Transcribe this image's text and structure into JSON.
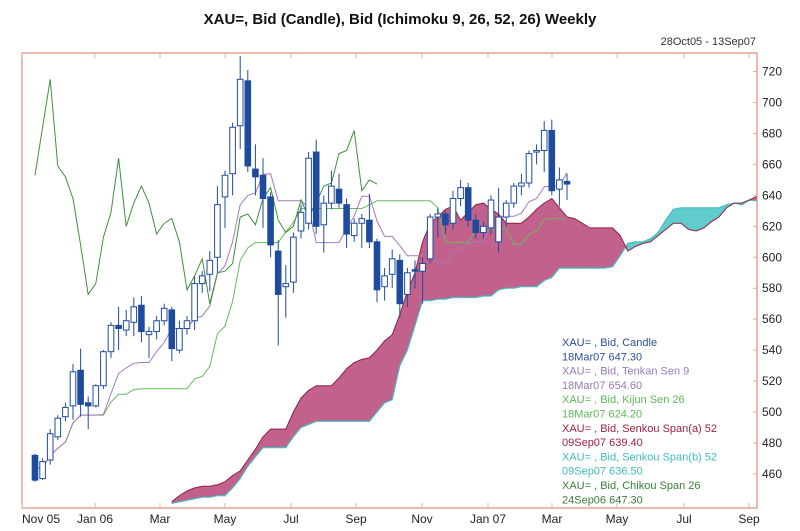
{
  "chart_data": {
    "type": "candlestick",
    "title": "XAU=, Bid (Candle), Bid (Ichimoku 9, 26, 52, 26) Weekly",
    "subtitle": "28Oct05 - 13Sep07",
    "ylim": [
      438,
      732
    ],
    "y_ticks": [
      460,
      480,
      500,
      520,
      540,
      560,
      580,
      600,
      620,
      640,
      660,
      680,
      700,
      720
    ],
    "x_tick_labels": [
      "Nov 05",
      "Jan 06",
      "Mar",
      "May",
      "Jul",
      "Sep",
      "Nov",
      "Jan 07",
      "Mar",
      "May",
      "Jul",
      "Sep"
    ],
    "grid": false,
    "legend_placement": "bottom-right",
    "dates": [
      "13Nov05",
      "20Nov05",
      "27Nov05",
      "04Dec05",
      "11Dec05",
      "18Dec05",
      "25Dec05",
      "01Jan06",
      "08Jan06",
      "15Jan06",
      "22Jan06",
      "29Jan06",
      "05Feb06",
      "12Feb06",
      "19Feb06",
      "26Feb06",
      "05Mar06",
      "12Mar06",
      "19Mar06",
      "26Mar06",
      "02Apr06",
      "09Apr06",
      "16Apr06",
      "23Apr06",
      "30Apr06",
      "07May06",
      "14May06",
      "21May06",
      "28May06",
      "04Jun06",
      "11Jun06",
      "18Jun06",
      "25Jun06",
      "02Jul06",
      "09Jul06",
      "16Jul06",
      "23Jul06",
      "30Jul06",
      "06Aug06",
      "13Aug06",
      "20Aug06",
      "27Aug06",
      "03Sep06",
      "10Sep06",
      "17Sep06",
      "24Sep06",
      "01Oct06",
      "08Oct06",
      "15Oct06",
      "22Oct06",
      "29Oct06",
      "05Nov06",
      "12Nov06",
      "19Nov06",
      "26Nov06",
      "03Dec06",
      "10Dec06",
      "17Dec06",
      "24Dec06",
      "31Dec06",
      "07Jan07",
      "14Jan07",
      "21Jan07",
      "28Jan07",
      "04Feb07",
      "11Feb07",
      "18Feb07",
      "25Feb07",
      "04Mar07",
      "11Mar07",
      "18Mar07",
      "25Mar07",
      "01Apr07",
      "08Apr07",
      "15Apr07",
      "22Apr07",
      "29Apr07",
      "06May07",
      "13May07",
      "20May07",
      "27May07",
      "03Jun07",
      "10Jun07",
      "17Jun07",
      "24Jun07",
      "01Jul07",
      "08Jul07",
      "15Jul07",
      "22Jul07",
      "29Jul07",
      "05Aug07",
      "12Aug07",
      "19Aug07",
      "26Aug07",
      "02Sep07",
      "09Sep07"
    ],
    "candles_ohlc": [
      [
        472,
        473,
        455,
        456
      ],
      [
        457,
        470,
        456,
        468
      ],
      [
        469,
        489,
        466,
        486
      ],
      [
        484,
        498,
        482,
        496
      ],
      [
        497,
        506,
        494,
        503
      ],
      [
        504,
        531,
        495,
        526
      ],
      [
        527,
        541,
        497,
        505
      ],
      [
        506,
        510,
        489,
        504
      ],
      [
        504,
        518,
        503,
        517
      ],
      [
        517,
        540,
        515,
        539
      ],
      [
        539,
        558,
        535,
        556
      ],
      [
        556,
        568,
        540,
        554
      ],
      [
        553,
        566,
        549,
        559
      ],
      [
        558,
        574,
        549,
        568
      ],
      [
        569,
        575,
        545,
        552
      ],
      [
        550,
        555,
        535,
        552
      ],
      [
        552,
        562,
        547,
        559
      ],
      [
        559,
        570,
        556,
        567
      ],
      [
        566,
        568,
        533,
        541
      ],
      [
        540,
        559,
        538,
        554
      ],
      [
        554,
        562,
        550,
        559
      ],
      [
        559,
        588,
        553,
        583
      ],
      [
        583,
        591,
        577,
        588
      ],
      [
        589,
        604,
        578,
        598
      ],
      [
        600,
        646,
        590,
        634
      ],
      [
        639,
        656,
        619,
        653
      ],
      [
        654,
        687,
        640,
        684
      ],
      [
        685,
        730,
        670,
        715
      ],
      [
        714,
        721,
        655,
        659
      ],
      [
        657,
        673,
        640,
        652
      ],
      [
        653,
        664,
        619,
        638
      ],
      [
        639,
        642,
        600,
        608
      ],
      [
        604,
        611,
        543,
        576
      ],
      [
        581,
        595,
        561,
        583
      ],
      [
        584,
        616,
        577,
        613
      ],
      [
        617,
        634,
        612,
        629
      ],
      [
        622,
        668,
        618,
        664
      ],
      [
        668,
        676,
        615,
        620
      ],
      [
        621,
        640,
        603,
        635
      ],
      [
        635,
        656,
        631,
        646
      ],
      [
        644,
        654,
        632,
        635
      ],
      [
        634,
        638,
        606,
        615
      ],
      [
        614,
        625,
        610,
        622
      ],
      [
        622,
        628,
        606,
        625
      ],
      [
        624,
        641,
        606,
        610
      ],
      [
        610,
        612,
        571,
        579
      ],
      [
        581,
        593,
        572,
        588
      ],
      [
        589,
        605,
        580,
        599
      ],
      [
        598,
        602,
        561,
        570
      ],
      [
        576,
        593,
        568,
        590
      ],
      [
        592,
        598,
        580,
        591
      ],
      [
        591,
        600,
        570,
        596
      ],
      [
        599,
        628,
        596,
        626
      ],
      [
        626,
        632,
        613,
        628
      ],
      [
        628,
        630,
        615,
        621
      ],
      [
        622,
        643,
        618,
        638
      ],
      [
        638,
        650,
        633,
        645
      ],
      [
        645,
        648,
        620,
        624
      ],
      [
        624,
        628,
        612,
        616
      ],
      [
        616,
        623,
        612,
        620
      ],
      [
        619,
        640,
        615,
        637
      ],
      [
        610,
        645,
        603,
        626
      ],
      [
        626,
        637,
        620,
        635
      ],
      [
        635,
        648,
        632,
        646
      ],
      [
        646,
        654,
        640,
        648
      ],
      [
        648,
        669,
        645,
        667
      ],
      [
        668,
        673,
        660,
        669
      ],
      [
        669,
        688,
        655,
        682
      ],
      [
        682,
        689,
        640,
        643
      ],
      [
        644,
        658,
        633,
        650
      ],
      [
        649,
        654,
        637,
        647.3
      ]
    ],
    "senkou_span_a": [
      null,
      null,
      null,
      null,
      null,
      null,
      null,
      null,
      null,
      null,
      null,
      null,
      null,
      null,
      null,
      null,
      null,
      null,
      442,
      446,
      449,
      451,
      452,
      452,
      453,
      455,
      459,
      462,
      469,
      476,
      484,
      489,
      489,
      489,
      500,
      509,
      514,
      517,
      517,
      517,
      522,
      528,
      532,
      534,
      535,
      540,
      546,
      550,
      563,
      578,
      590,
      610,
      622,
      626,
      631,
      633,
      624,
      629,
      634,
      635,
      631,
      628,
      622,
      622,
      622,
      626,
      631,
      635,
      638,
      632,
      626,
      625,
      622,
      619,
      619,
      619,
      619,
      614,
      604,
      607,
      609,
      610,
      614,
      618,
      622,
      622,
      618,
      617,
      619,
      623,
      626,
      632,
      635,
      635,
      637,
      639.4
    ],
    "senkou_span_b": [
      null,
      null,
      null,
      null,
      null,
      null,
      null,
      null,
      null,
      null,
      null,
      null,
      null,
      null,
      null,
      null,
      null,
      null,
      441,
      442,
      443,
      444,
      445,
      445,
      446,
      446,
      451,
      457,
      465,
      471,
      477,
      477,
      477,
      477,
      484,
      490,
      492,
      494,
      494,
      494,
      494,
      494,
      494,
      494,
      494,
      500,
      506,
      508,
      530,
      540,
      556,
      572,
      572,
      573,
      573,
      574,
      574,
      574,
      574,
      575,
      575,
      579,
      580,
      580,
      581,
      581,
      581,
      585,
      587,
      593,
      593,
      593,
      593,
      593,
      593,
      593,
      594,
      601,
      609,
      610,
      610,
      612,
      616,
      624,
      631,
      632,
      632,
      632,
      632,
      632,
      632,
      634,
      635,
      634,
      637,
      636.5
    ],
    "tenkan_period": 9,
    "kijun_period": 26,
    "chikou_shift": 25,
    "colors": {
      "candle": "#1f4b9e",
      "tenkan": "#a57ab8",
      "kijun": "#66bb5e",
      "chikou": "#3f8f3a",
      "span_a": "#8e2345",
      "span_b": "#44bcc0",
      "cloud_up": "#c2618b",
      "cloud_down": "#62cccc",
      "frame": "#e08a7a"
    },
    "legend": [
      {
        "name": "XAU= , Bid, Candle",
        "value": "18Mar07 647.30",
        "color": "#2c4f9c"
      },
      {
        "name": "XAU= , Bid, Tenkan Sen 9",
        "value": "18Mar07 654.60",
        "color": "#9b78b6"
      },
      {
        "name": "XAU= , Bid, Kijun Sen 26",
        "value": "18Mar07 624.20",
        "color": "#5db855"
      },
      {
        "name": "XAU= , Bid, Senkou Span(a) 52",
        "value": "09Sep07 639.40",
        "color": "#a0213f"
      },
      {
        "name": "XAU= , Bid, Senkou Span(b) 52",
        "value": "09Sep07 636.50",
        "color": "#3fbcbc"
      },
      {
        "name": "XAU= , Bid, Chikou Span 26",
        "value": "24Sep06 647.30",
        "color": "#3a7d38"
      }
    ]
  }
}
